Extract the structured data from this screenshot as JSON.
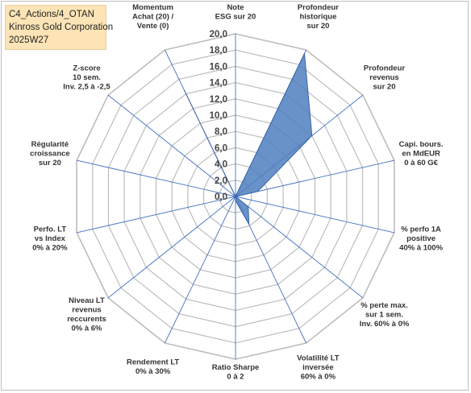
{
  "title_box": {
    "line1": "C4_Actions/4_OTAN",
    "line2": "Kinross Gold Corporation",
    "line3": "2025W27"
  },
  "colors": {
    "fill": "#4f7fbf",
    "stroke": "#3a66a8",
    "grid": "#bdbdbd",
    "spoke": "#4472c4",
    "title_bg": "#fce4b6"
  },
  "chart_data": {
    "type": "radar",
    "rmin": 0,
    "rmax": 20,
    "grid": true,
    "ticks": [
      "0,0",
      "2,0",
      "4,0",
      "6,0",
      "8,0",
      "10,0",
      "12,0",
      "14,0",
      "16,0",
      "18,0",
      "20,0"
    ],
    "axes": [
      {
        "label": [
          "Note",
          "ESG sur 20"
        ],
        "value": 0
      },
      {
        "label": [
          "Profondeur",
          "historique",
          "sur 20"
        ],
        "value": 19.5
      },
      {
        "label": [
          "Profondeur",
          "revenus",
          "sur 20"
        ],
        "value": 12.0
      },
      {
        "label": [
          "Capi. bours.",
          "en MdEUR",
          "0 à 60 G€"
        ],
        "value": 2.8
      },
      {
        "label": [
          "% perfo 1A",
          "positive",
          "40% à 100%"
        ],
        "value": 0
      },
      {
        "label": [
          "% perte max.",
          "sur 1 sem.",
          "Inv. 60% à 0%"
        ],
        "value": 2.0
      },
      {
        "label": [
          "Volatilité LT",
          "inversée",
          "60% à 0%"
        ],
        "value": 3.8
      },
      {
        "label": [
          "Ratio Sharpe",
          "0 à 2"
        ],
        "value": 0.5
      },
      {
        "label": [
          "Rendement LT",
          "0% à 30%"
        ],
        "value": 0
      },
      {
        "label": [
          "Niveau LT",
          "revenus",
          "reccurents",
          "0% à 6%"
        ],
        "value": 0
      },
      {
        "label": [
          "Perfo. LT",
          "vs Index",
          "0% à 20%"
        ],
        "value": 0
      },
      {
        "label": [
          "Régularité",
          "croissance",
          "sur 20"
        ],
        "value": 0
      },
      {
        "label": [
          "Z-score",
          "10 sem.",
          "Inv. 2,5 à -2,5"
        ],
        "value": 0
      },
      {
        "label": [
          "Momentum",
          "Achat (20) /",
          "Vente (0)"
        ],
        "value": 14.5
      }
    ]
  }
}
